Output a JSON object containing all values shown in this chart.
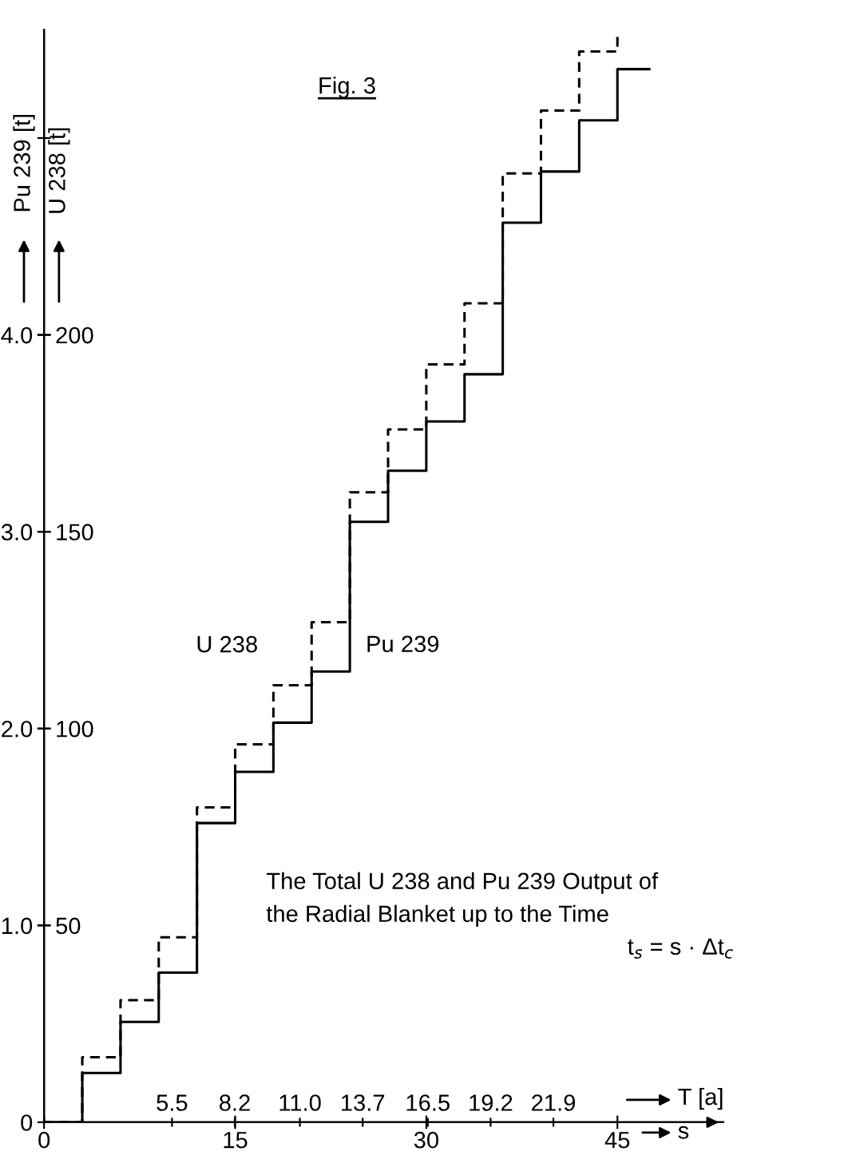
{
  "chart_data": {
    "type": "step",
    "title": "Fig. 3",
    "xlabel": "s",
    "x2label": "T [a]",
    "ylabel": "Pu 239 [t]",
    "y2label": "U 238 [t]",
    "xlim": [
      0,
      53.3
    ],
    "xticks": [
      0,
      15,
      30,
      45
    ],
    "x2lim": [
      0,
      29.2
    ],
    "x2ticks": [
      5.5,
      8.2,
      {
        "value": 11,
        "label": "11.0"
      },
      13.7,
      16.5,
      19.2,
      21.9
    ],
    "ylim": [
      0,
      5.55
    ],
    "yticks": [
      {
        "value": 0,
        "label": "0"
      },
      {
        "value": 1,
        "label": "1.0"
      },
      {
        "value": 2,
        "label": "2.0"
      },
      {
        "value": 3,
        "label": "3.0"
      },
      {
        "value": 4,
        "label": "4.0"
      },
      {
        "value": 5,
        "label": null
      }
    ],
    "y2lim": [
      0,
      277.5
    ],
    "y2ticks": [
      50,
      100,
      150,
      200
    ],
    "series": [
      {
        "name": "U 238",
        "color": "#000000",
        "axis": "y2",
        "line_style": "dashed",
        "x": [
          0,
          3,
          6,
          9,
          12,
          15,
          18,
          21,
          24,
          27,
          30,
          33,
          36,
          39,
          42,
          45
        ],
        "values": [
          0,
          16.5,
          31,
          47,
          80,
          96,
          111,
          127,
          160,
          176,
          192.5,
          208,
          241,
          257,
          272,
          277
        ]
      },
      {
        "name": "Pu 239",
        "color": "#000000",
        "axis": "y",
        "line_style": "solid",
        "x": [
          0,
          3,
          6,
          9,
          12,
          15,
          18,
          21,
          24,
          27,
          30,
          33,
          36,
          39,
          42,
          45,
          47.5
        ],
        "values": [
          0,
          0.25,
          0.51,
          0.76,
          1.52,
          1.78,
          2.03,
          2.29,
          3.05,
          3.31,
          3.56,
          3.8,
          4.57,
          4.83,
          5.09,
          5.35,
          5.35
        ]
      }
    ],
    "annotations": [
      "The Total U 238 and Pu 239 Output of",
      "the Radial Blanket up to the Time",
      "t$_{s}$ = s · Δt$_{c}$"
    ],
    "grid": false
  }
}
